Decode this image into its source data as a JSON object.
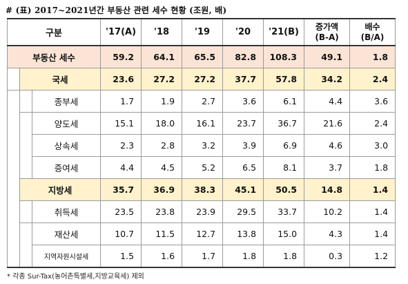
{
  "caption": "# (표) 2017~2021년간 부동산 관련 세수 현황 (조원, 배)",
  "header": {
    "category": "구분",
    "years": [
      "'17(A)",
      "'18",
      "'19",
      "'20",
      "'21(B)"
    ],
    "increase_line1": "증가액",
    "increase_line2": "(B-A)",
    "ratio_line1": "배수",
    "ratio_line2": "(B/A)"
  },
  "rows": {
    "total": {
      "label": "부동산 세수",
      "values": [
        "59.2",
        "64.1",
        "65.5",
        "82.8",
        "108.3"
      ],
      "increase": "49.1",
      "ratio": "1.8"
    },
    "national": {
      "label": "국세",
      "values": [
        "23.6",
        "27.2",
        "27.2",
        "37.7",
        "57.8"
      ],
      "increase": "34.2",
      "ratio": "2.4"
    },
    "national_items": [
      {
        "label": "종부세",
        "values": [
          "1.7",
          "1.9",
          "2.7",
          "3.6",
          "6.1"
        ],
        "increase": "4.4",
        "ratio": "3.6"
      },
      {
        "label": "양도세",
        "values": [
          "15.1",
          "18.0",
          "16.1",
          "23.7",
          "36.7"
        ],
        "increase": "21.6",
        "ratio": "2.4"
      },
      {
        "label": "상속세",
        "values": [
          "2.3",
          "2.8",
          "3.2",
          "3.9",
          "6.9"
        ],
        "increase": "4.6",
        "ratio": "3.0"
      },
      {
        "label": "증여세",
        "values": [
          "4.4",
          "4.5",
          "5.2",
          "6.5",
          "8.1"
        ],
        "increase": "3.7",
        "ratio": "1.8"
      }
    ],
    "local": {
      "label": "지방세",
      "values": [
        "35.7",
        "36.9",
        "38.3",
        "45.1",
        "50.5"
      ],
      "increase": "14.8",
      "ratio": "1.4"
    },
    "local_items": [
      {
        "label": "취득세",
        "values": [
          "23.5",
          "23.8",
          "23.9",
          "29.5",
          "33.7"
        ],
        "increase": "10.2",
        "ratio": "1.4"
      },
      {
        "label": "재산세",
        "values": [
          "10.7",
          "11.5",
          "12.7",
          "13.8",
          "15.0"
        ],
        "increase": "4.3",
        "ratio": "1.4"
      },
      {
        "label": "지역자원시설세",
        "values": [
          "1.5",
          "1.6",
          "1.7",
          "1.8",
          "1.8"
        ],
        "increase": "0.3",
        "ratio": "1.2"
      }
    ]
  },
  "note": "* 각종 Sur-Tax(농어촌특별세,지방교육세) 제외"
}
